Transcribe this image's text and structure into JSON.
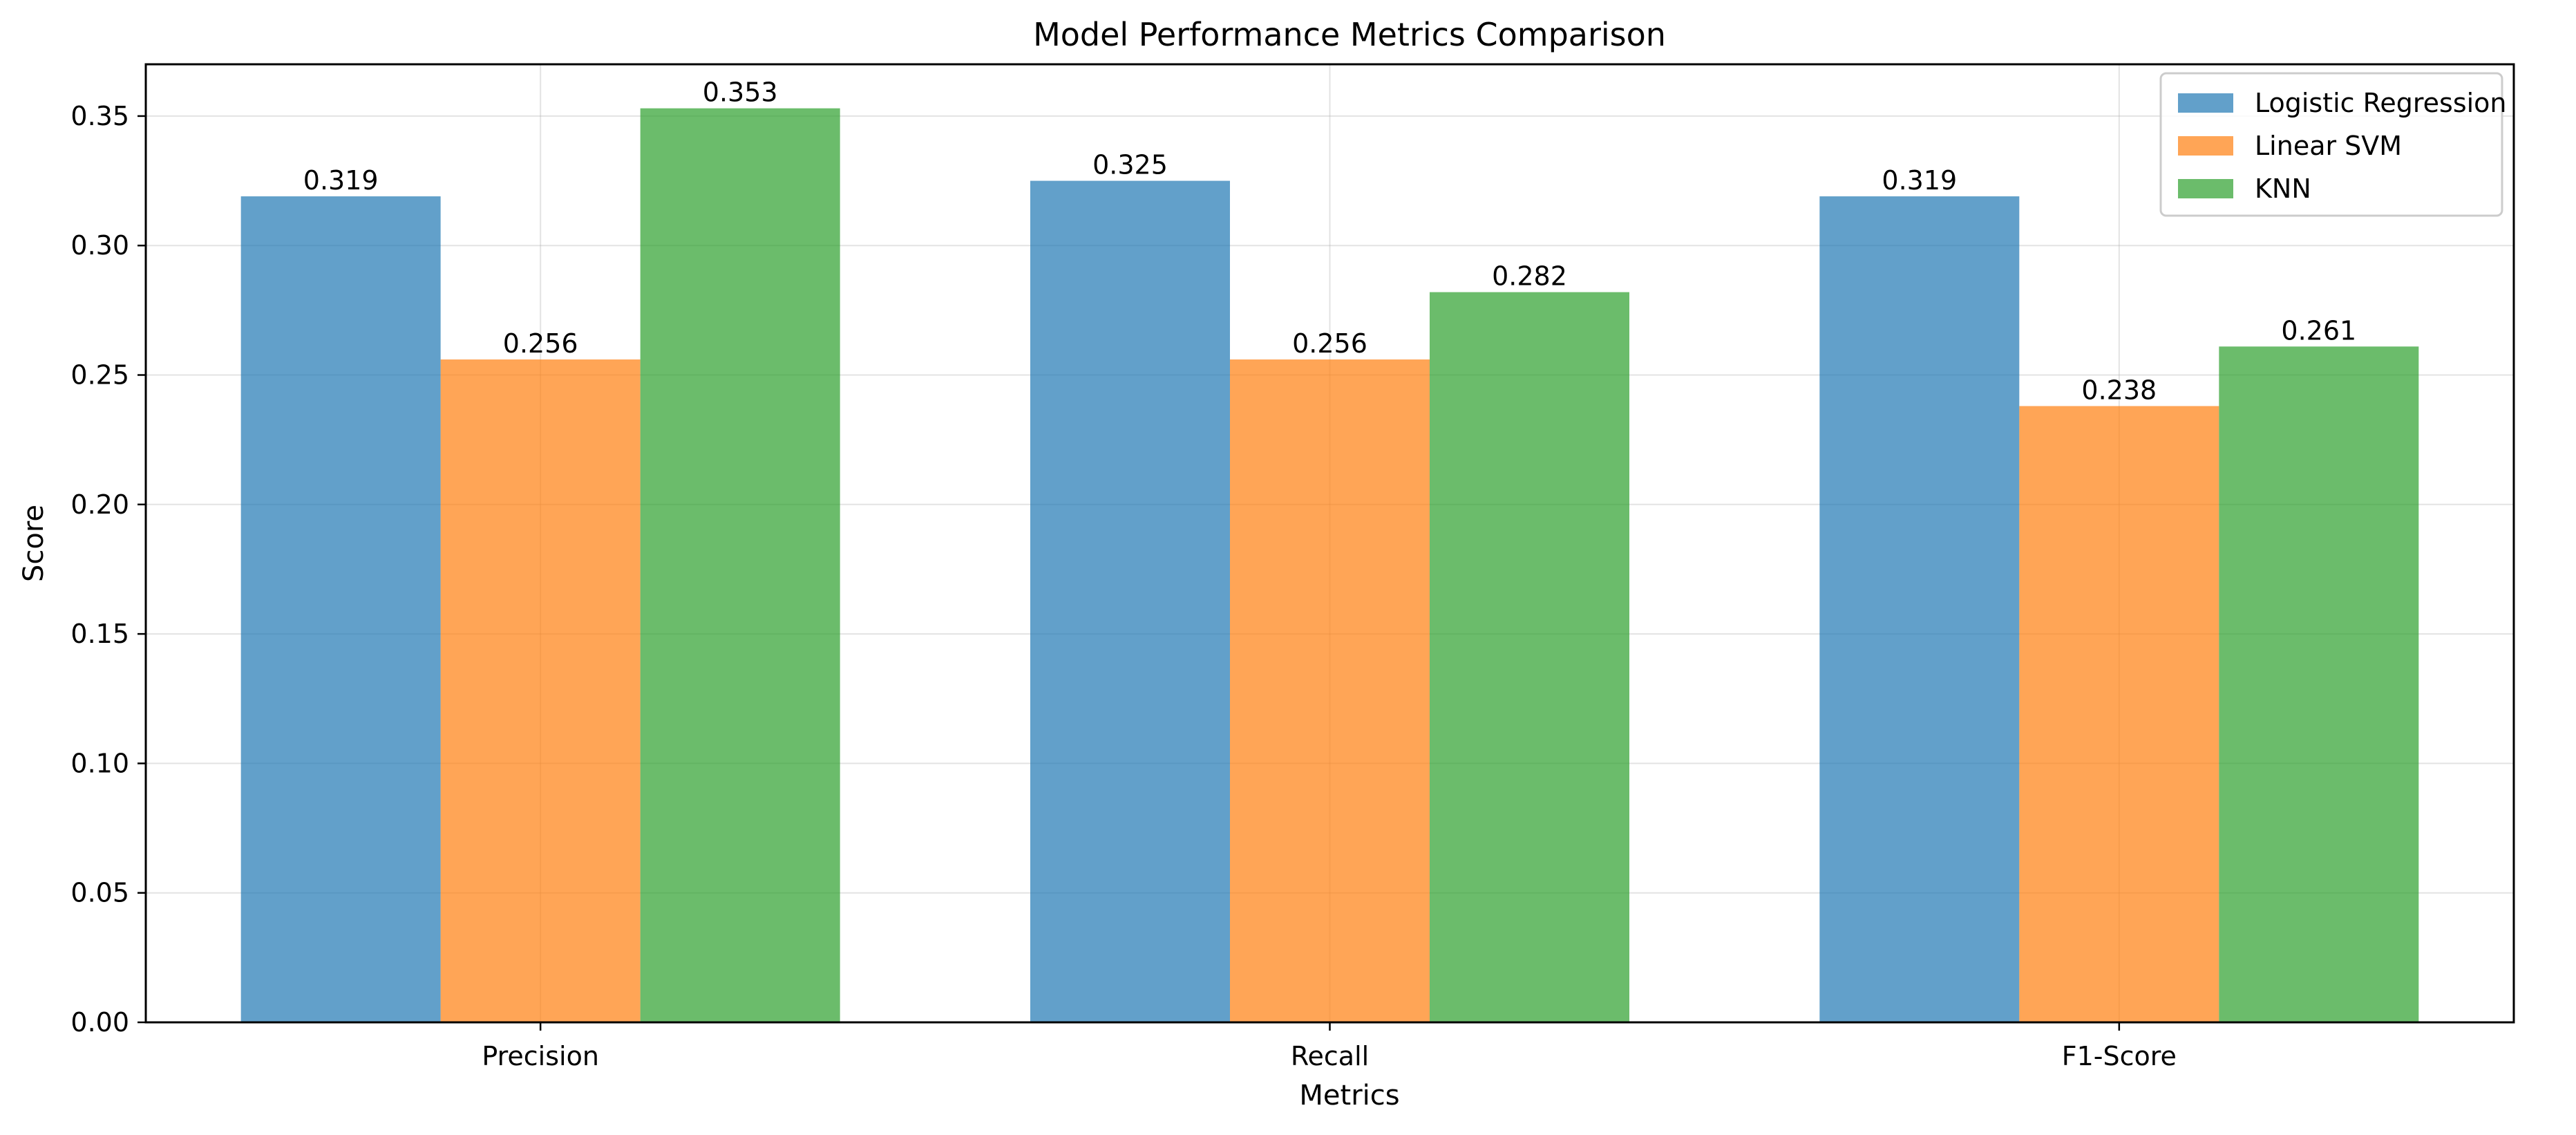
{
  "chart_data": {
    "type": "bar",
    "title": "Model Performance Metrics Comparison",
    "xlabel": "Metrics",
    "ylabel": "Score",
    "categories": [
      "Precision",
      "Recall",
      "F1-Score"
    ],
    "series": [
      {
        "name": "Logistic Regression",
        "color": "#1f77b4",
        "values": [
          0.319,
          0.325,
          0.319
        ],
        "labels": [
          "0.319",
          "0.325",
          "0.319"
        ]
      },
      {
        "name": "Linear SVM",
        "color": "#ff7f0e",
        "values": [
          0.256,
          0.256,
          0.238
        ],
        "labels": [
          "0.256",
          "0.256",
          "0.238"
        ]
      },
      {
        "name": "KNN",
        "color": "#2ca02c",
        "values": [
          0.353,
          0.282,
          0.261
        ],
        "labels": [
          "0.353",
          "0.282",
          "0.261"
        ]
      }
    ],
    "ylim": [
      0,
      0.37
    ],
    "yticks": [
      0.0,
      0.05,
      0.1,
      0.15,
      0.2,
      0.25,
      0.3,
      0.35
    ],
    "ytick_labels": [
      "0.00",
      "0.05",
      "0.10",
      "0.15",
      "0.20",
      "0.25",
      "0.30",
      "0.35"
    ],
    "grid": true,
    "legend_position": "top-right",
    "bar_opacity": 0.7
  }
}
